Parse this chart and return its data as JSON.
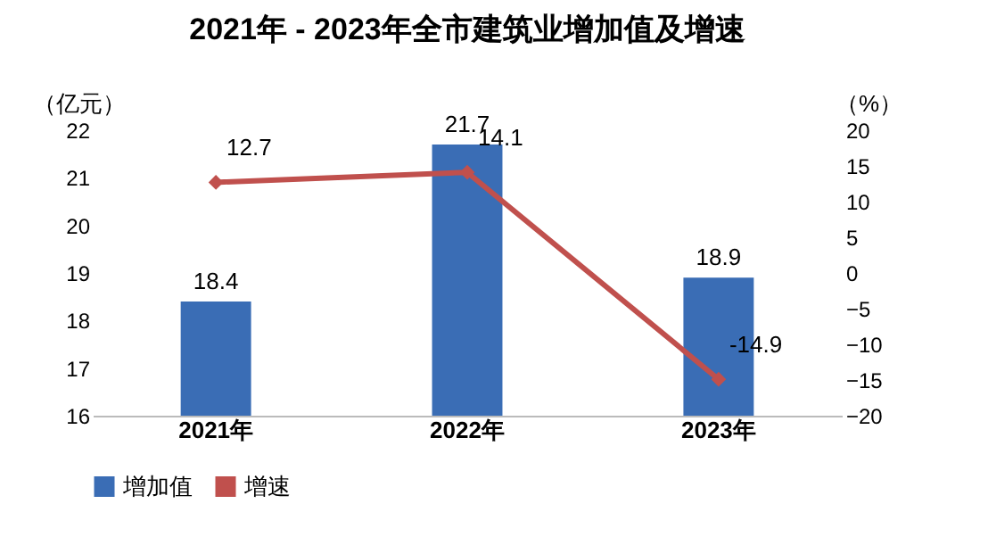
{
  "chart_data": {
    "type": "bar",
    "title": "2021年 - 2023年全市建筑业增加值及增速",
    "ylabel": "（亿元）",
    "y2label": "（%）",
    "categories": [
      "2021年",
      "2022年",
      "2023年"
    ],
    "series": [
      {
        "name": "增加值",
        "color": "#3a6db5",
        "values": [
          18.4,
          21.7,
          18.9
        ]
      },
      {
        "name": "增速",
        "type": "line",
        "axis": "y2",
        "color": "#c0504d",
        "values": [
          12.7,
          14.1,
          -14.9
        ]
      }
    ],
    "ylim": [
      16,
      22
    ],
    "yticks": [
      16,
      17,
      18,
      19,
      20,
      21,
      22
    ],
    "y2lim": [
      -20,
      20
    ],
    "y2ticks": [
      -20,
      -15,
      -10,
      -5,
      0,
      5,
      10,
      15,
      20
    ],
    "marker": "diamond",
    "grid": false,
    "legend": "bottom",
    "data_labels": true
  }
}
